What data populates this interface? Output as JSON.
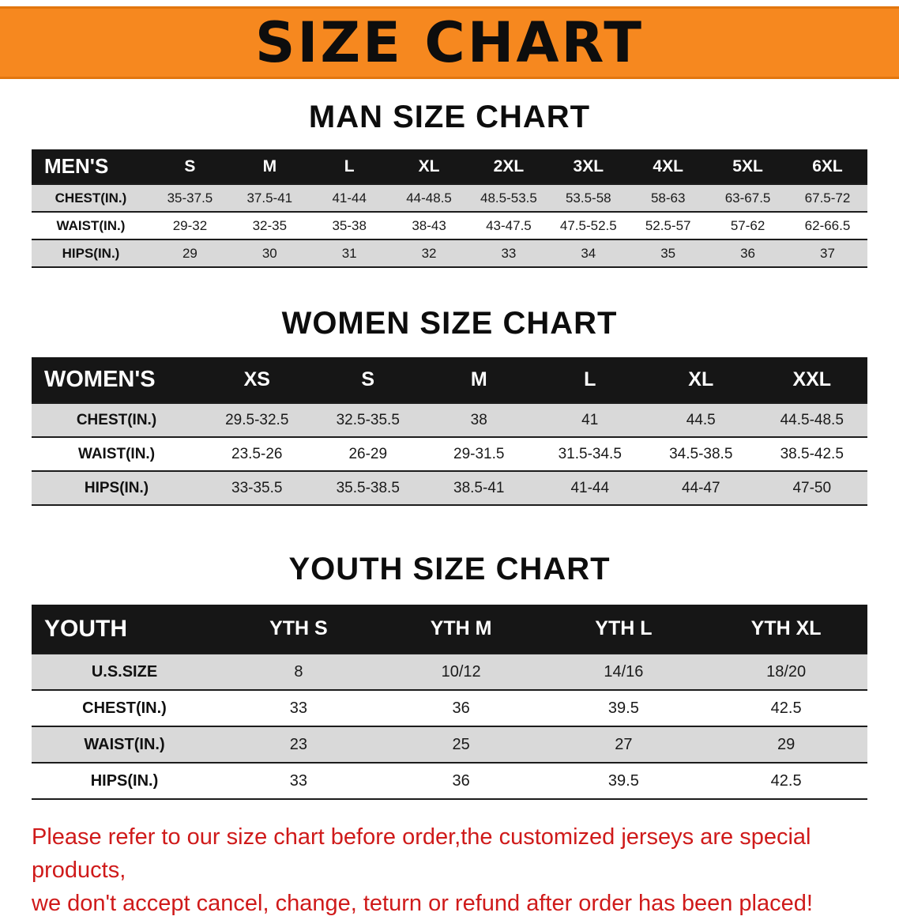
{
  "banner": {
    "title": "SIZE CHART"
  },
  "sections": [
    {
      "heading": "MAN SIZE CHART",
      "table": {
        "label": "MEN'S",
        "columns": [
          "S",
          "M",
          "L",
          "XL",
          "2XL",
          "3XL",
          "4XL",
          "5XL",
          "6XL"
        ],
        "rows": [
          {
            "label": "CHEST(IN.)",
            "values": [
              "35-37.5",
              "37.5-41",
              "41-44",
              "44-48.5",
              "48.5-53.5",
              "53.5-58",
              "58-63",
              "63-67.5",
              "67.5-72"
            ]
          },
          {
            "label": "WAIST(IN.)",
            "values": [
              "29-32",
              "32-35",
              "35-38",
              "38-43",
              "43-47.5",
              "47.5-52.5",
              "52.5-57",
              "57-62",
              "62-66.5"
            ]
          },
          {
            "label": "HIPS(IN.)",
            "values": [
              "29",
              "30",
              "31",
              "32",
              "33",
              "34",
              "35",
              "36",
              "37"
            ]
          }
        ]
      }
    },
    {
      "heading": "WOMEN SIZE CHART",
      "table": {
        "label": "WOMEN'S",
        "columns": [
          "XS",
          "S",
          "M",
          "L",
          "XL",
          "XXL"
        ],
        "rows": [
          {
            "label": "CHEST(IN.)",
            "values": [
              "29.5-32.5",
              "32.5-35.5",
              "38",
              "41",
              "44.5",
              "44.5-48.5"
            ]
          },
          {
            "label": "WAIST(IN.)",
            "values": [
              "23.5-26",
              "26-29",
              "29-31.5",
              "31.5-34.5",
              "34.5-38.5",
              "38.5-42.5"
            ]
          },
          {
            "label": "HIPS(IN.)",
            "values": [
              "33-35.5",
              "35.5-38.5",
              "38.5-41",
              "41-44",
              "44-47",
              "47-50"
            ]
          }
        ]
      }
    },
    {
      "heading": "YOUTH SIZE CHART",
      "table": {
        "label": "YOUTH",
        "columns": [
          "YTH S",
          "YTH M",
          "YTH L",
          "YTH XL"
        ],
        "rows": [
          {
            "label": "U.S.SIZE",
            "values": [
              "8",
              "10/12",
              "14/16",
              "18/20"
            ]
          },
          {
            "label": "CHEST(IN.)",
            "values": [
              "33",
              "36",
              "39.5",
              "42.5"
            ]
          },
          {
            "label": "WAIST(IN.)",
            "values": [
              "23",
              "25",
              "27",
              "29"
            ]
          },
          {
            "label": "HIPS(IN.)",
            "values": [
              "33",
              "36",
              "39.5",
              "42.5"
            ]
          }
        ]
      }
    }
  ],
  "footer": {
    "line1": "Please refer to our size chart before order,the customized jerseys are special products,",
    "line2": "we don't accept cancel, change, teturn or refund after order has been placed!"
  },
  "colors": {
    "banner_orange": "#f6881f",
    "header_black": "#161616",
    "row_gray": "#d9d9d9",
    "footer_red": "#cf1a1a"
  }
}
